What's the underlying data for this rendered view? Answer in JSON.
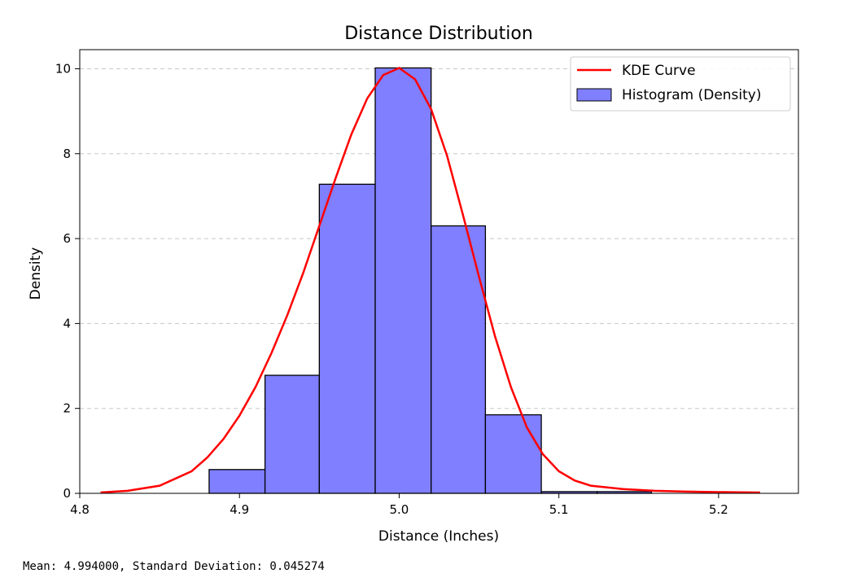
{
  "chart_data": {
    "type": "bar",
    "title": "Distance Distribution",
    "xlabel": "Distance (Inches)",
    "ylabel": "Density",
    "xlim": [
      4.8,
      5.25
    ],
    "ylim": [
      0,
      10.45
    ],
    "xticks": [
      {
        "value": 4.8,
        "label": "4.8"
      },
      {
        "value": 4.9,
        "label": "4.9"
      },
      {
        "value": 5.0,
        "label": "5.0"
      },
      {
        "value": 5.1,
        "label": "5.1"
      },
      {
        "value": 5.2,
        "label": "5.2"
      }
    ],
    "yticks": [
      {
        "value": 0,
        "label": "0"
      },
      {
        "value": 2,
        "label": "2"
      },
      {
        "value": 4,
        "label": "4"
      },
      {
        "value": 6,
        "label": "6"
      },
      {
        "value": 8,
        "label": "8"
      },
      {
        "value": 10,
        "label": "10"
      }
    ],
    "grid": "y-dashed",
    "legend_position": "top-right",
    "histogram": {
      "name": "Histogram (Density)",
      "color": "#7f7fff",
      "edge_color": "#000000",
      "bins": [
        {
          "x0": 4.881,
          "x1": 4.916,
          "density": 0.56
        },
        {
          "x0": 4.916,
          "x1": 4.95,
          "density": 2.78
        },
        {
          "x0": 4.95,
          "x1": 4.985,
          "density": 7.28
        },
        {
          "x0": 4.985,
          "x1": 5.02,
          "density": 10.02
        },
        {
          "x0": 5.02,
          "x1": 5.054,
          "density": 6.3
        },
        {
          "x0": 5.054,
          "x1": 5.089,
          "density": 1.85
        },
        {
          "x0": 5.089,
          "x1": 5.124,
          "density": 0.04
        },
        {
          "x0": 5.124,
          "x1": 5.158,
          "density": 0.04
        }
      ]
    },
    "kde": {
      "name": "KDE Curve",
      "color": "#ff0000",
      "points": [
        [
          4.813,
          0.02
        ],
        [
          4.83,
          0.06
        ],
        [
          4.85,
          0.18
        ],
        [
          4.87,
          0.52
        ],
        [
          4.88,
          0.85
        ],
        [
          4.89,
          1.28
        ],
        [
          4.9,
          1.83
        ],
        [
          4.91,
          2.5
        ],
        [
          4.92,
          3.3
        ],
        [
          4.93,
          4.2
        ],
        [
          4.94,
          5.2
        ],
        [
          4.95,
          6.3
        ],
        [
          4.96,
          7.4
        ],
        [
          4.97,
          8.45
        ],
        [
          4.98,
          9.3
        ],
        [
          4.99,
          9.85
        ],
        [
          5.0,
          10.02
        ],
        [
          5.01,
          9.75
        ],
        [
          5.02,
          9.05
        ],
        [
          5.03,
          7.95
        ],
        [
          5.04,
          6.55
        ],
        [
          5.05,
          5.1
        ],
        [
          5.06,
          3.7
        ],
        [
          5.07,
          2.5
        ],
        [
          5.08,
          1.55
        ],
        [
          5.09,
          0.92
        ],
        [
          5.1,
          0.52
        ],
        [
          5.11,
          0.3
        ],
        [
          5.12,
          0.18
        ],
        [
          5.14,
          0.1
        ],
        [
          5.16,
          0.06
        ],
        [
          5.18,
          0.04
        ],
        [
          5.2,
          0.03
        ],
        [
          5.226,
          0.02
        ]
      ]
    }
  },
  "footer": {
    "stats_text": "Mean: 4.994000, Standard Deviation: 0.045274"
  }
}
